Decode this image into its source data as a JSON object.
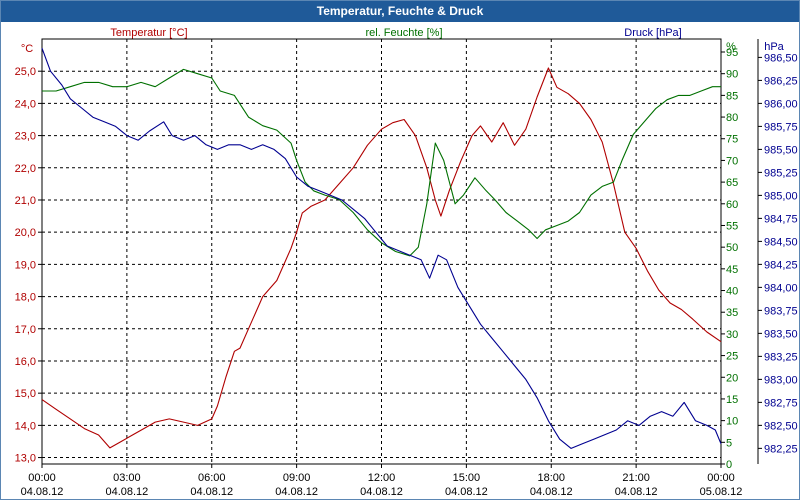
{
  "window": {
    "title": "Temperatur, Feuchte & Druck"
  },
  "chart_data": {
    "type": "line",
    "title": "Temperatur, Feuchte & Druck",
    "grid": true,
    "x": {
      "ticks": [
        {
          "time": "00:00",
          "date": "04.08.12"
        },
        {
          "time": "03:00",
          "date": "04.08.12"
        },
        {
          "time": "06:00",
          "date": "04.08.12"
        },
        {
          "time": "09:00",
          "date": "04.08.12"
        },
        {
          "time": "12:00",
          "date": "04.08.12"
        },
        {
          "time": "15:00",
          "date": "04.08.12"
        },
        {
          "time": "18:00",
          "date": "04.08.12"
        },
        {
          "time": "21:00",
          "date": "04.08.12"
        },
        {
          "time": "00:00",
          "date": "05.08.12"
        }
      ],
      "range_hours": [
        0,
        24
      ]
    },
    "axes": {
      "temperature": {
        "unit": "°C",
        "label": "Temperatur [°C]",
        "color": "#b00000",
        "ylim": [
          12.8,
          26.0
        ],
        "ticks": [
          13.0,
          14.0,
          15.0,
          16.0,
          17.0,
          18.0,
          19.0,
          20.0,
          21.0,
          22.0,
          23.0,
          24.0,
          25.0
        ],
        "tick_labels": [
          "13,0",
          "14,0",
          "15,0",
          "16,0",
          "17,0",
          "18,0",
          "19,0",
          "20,0",
          "21,0",
          "22,0",
          "23,0",
          "24,0",
          "25,0"
        ]
      },
      "humidity": {
        "unit": "%",
        "label": "rel. Feuchte [%]",
        "color": "#007000",
        "ylim": [
          0,
          98
        ],
        "ticks": [
          0,
          5,
          10,
          15,
          20,
          25,
          30,
          35,
          40,
          45,
          50,
          55,
          60,
          65,
          70,
          75,
          80,
          85,
          90,
          95
        ],
        "tick_labels": [
          "0",
          "5",
          "10",
          "15",
          "20",
          "25",
          "30",
          "35",
          "40",
          "45",
          "50",
          "55",
          "60",
          "65",
          "70",
          "75",
          "80",
          "85",
          "90",
          "95"
        ]
      },
      "pressure": {
        "unit": "hPa",
        "label": "Druck [hPa]",
        "color": "#000090",
        "ylim": [
          982.08,
          986.7
        ],
        "ticks": [
          982.25,
          982.5,
          982.75,
          983.0,
          983.25,
          983.5,
          983.75,
          984.0,
          984.25,
          984.5,
          984.75,
          985.0,
          985.25,
          985.5,
          985.75,
          986.0,
          986.25,
          986.5
        ],
        "tick_labels": [
          "982,25",
          "982,50",
          "982,75",
          "983,00",
          "983,25",
          "983,50",
          "983,75",
          "984,00",
          "984,25",
          "984,50",
          "984,75",
          "985,00",
          "985,25",
          "985,50",
          "985,75",
          "986,00",
          "986,25",
          "986,50"
        ]
      }
    },
    "series": [
      {
        "name": "Temperatur [°C]",
        "axis": "temperature",
        "points": [
          [
            0,
            14.8
          ],
          [
            0.5,
            14.5
          ],
          [
            1,
            14.2
          ],
          [
            1.5,
            13.9
          ],
          [
            2,
            13.7
          ],
          [
            2.4,
            13.3
          ],
          [
            2.8,
            13.5
          ],
          [
            3.2,
            13.7
          ],
          [
            3.6,
            13.9
          ],
          [
            4,
            14.1
          ],
          [
            4.5,
            14.2
          ],
          [
            5,
            14.1
          ],
          [
            5.5,
            14.0
          ],
          [
            6,
            14.2
          ],
          [
            6.2,
            14.6
          ],
          [
            6.5,
            15.5
          ],
          [
            6.8,
            16.3
          ],
          [
            7,
            16.4
          ],
          [
            7.3,
            17.0
          ],
          [
            7.8,
            18.0
          ],
          [
            8.3,
            18.5
          ],
          [
            8.8,
            19.5
          ],
          [
            9,
            20.0
          ],
          [
            9.2,
            20.6
          ],
          [
            9.5,
            20.8
          ],
          [
            10,
            21.0
          ],
          [
            10.5,
            21.5
          ],
          [
            11,
            22.0
          ],
          [
            11.5,
            22.7
          ],
          [
            12,
            23.2
          ],
          [
            12.4,
            23.4
          ],
          [
            12.8,
            23.5
          ],
          [
            13.2,
            23.0
          ],
          [
            13.6,
            22.0
          ],
          [
            13.9,
            21.0
          ],
          [
            14.1,
            20.5
          ],
          [
            14.4,
            21.3
          ],
          [
            14.8,
            22.2
          ],
          [
            15.2,
            23.0
          ],
          [
            15.5,
            23.3
          ],
          [
            15.9,
            22.8
          ],
          [
            16.3,
            23.4
          ],
          [
            16.7,
            22.7
          ],
          [
            17.1,
            23.2
          ],
          [
            17.5,
            24.2
          ],
          [
            17.9,
            25.1
          ],
          [
            18.2,
            24.5
          ],
          [
            18.6,
            24.3
          ],
          [
            19,
            24.0
          ],
          [
            19.4,
            23.5
          ],
          [
            19.8,
            22.8
          ],
          [
            20.2,
            21.5
          ],
          [
            20.6,
            20.0
          ],
          [
            21,
            19.5
          ],
          [
            21.4,
            18.8
          ],
          [
            21.8,
            18.2
          ],
          [
            22.2,
            17.8
          ],
          [
            22.6,
            17.6
          ],
          [
            23,
            17.3
          ],
          [
            23.5,
            16.9
          ],
          [
            24,
            16.6
          ]
        ]
      },
      {
        "name": "rel. Feuchte [%]",
        "axis": "humidity",
        "points": [
          [
            0,
            86
          ],
          [
            0.5,
            86
          ],
          [
            1,
            87
          ],
          [
            1.5,
            88
          ],
          [
            2,
            88
          ],
          [
            2.5,
            87
          ],
          [
            3,
            87
          ],
          [
            3.5,
            88
          ],
          [
            4,
            87
          ],
          [
            4.5,
            89
          ],
          [
            5,
            91
          ],
          [
            5.5,
            90
          ],
          [
            6,
            89
          ],
          [
            6.3,
            86
          ],
          [
            6.8,
            85
          ],
          [
            7.3,
            80
          ],
          [
            7.8,
            78
          ],
          [
            8.3,
            77
          ],
          [
            8.8,
            74
          ],
          [
            9,
            70
          ],
          [
            9.3,
            65
          ],
          [
            9.6,
            63
          ],
          [
            10,
            62
          ],
          [
            10.5,
            61
          ],
          [
            11,
            58
          ],
          [
            11.5,
            54
          ],
          [
            12,
            51
          ],
          [
            12.5,
            49
          ],
          [
            13,
            48
          ],
          [
            13.3,
            50
          ],
          [
            13.6,
            60
          ],
          [
            13.9,
            74
          ],
          [
            14.2,
            70
          ],
          [
            14.4,
            65
          ],
          [
            14.6,
            60
          ],
          [
            14.9,
            62
          ],
          [
            15.3,
            66
          ],
          [
            15.7,
            63
          ],
          [
            16,
            61
          ],
          [
            16.4,
            58
          ],
          [
            16.8,
            56
          ],
          [
            17.2,
            54
          ],
          [
            17.5,
            52
          ],
          [
            17.8,
            54
          ],
          [
            18.2,
            55
          ],
          [
            18.6,
            56
          ],
          [
            19,
            58
          ],
          [
            19.4,
            62
          ],
          [
            19.8,
            64
          ],
          [
            20.2,
            65
          ],
          [
            20.5,
            70
          ],
          [
            20.9,
            76
          ],
          [
            21.3,
            79
          ],
          [
            21.7,
            82
          ],
          [
            22.1,
            84
          ],
          [
            22.5,
            85
          ],
          [
            22.9,
            85
          ],
          [
            23.3,
            86
          ],
          [
            23.7,
            87
          ],
          [
            24,
            87
          ]
        ]
      },
      {
        "name": "Druck [hPa]",
        "axis": "pressure",
        "points": [
          [
            0,
            986.6
          ],
          [
            0.3,
            986.35
          ],
          [
            0.7,
            986.2
          ],
          [
            1,
            986.05
          ],
          [
            1.4,
            985.95
          ],
          [
            1.8,
            985.85
          ],
          [
            2.2,
            985.8
          ],
          [
            2.6,
            985.75
          ],
          [
            3,
            985.65
          ],
          [
            3.4,
            985.6
          ],
          [
            3.8,
            985.7
          ],
          [
            4.3,
            985.8
          ],
          [
            4.6,
            985.65
          ],
          [
            5,
            985.6
          ],
          [
            5.4,
            985.65
          ],
          [
            5.8,
            985.55
          ],
          [
            6.2,
            985.5
          ],
          [
            6.6,
            985.55
          ],
          [
            7,
            985.55
          ],
          [
            7.4,
            985.5
          ],
          [
            7.8,
            985.55
          ],
          [
            8.2,
            985.5
          ],
          [
            8.6,
            985.4
          ],
          [
            9,
            985.2
          ],
          [
            9.4,
            985.1
          ],
          [
            9.8,
            985.05
          ],
          [
            10.2,
            985.0
          ],
          [
            10.6,
            984.95
          ],
          [
            11,
            984.85
          ],
          [
            11.4,
            984.75
          ],
          [
            11.8,
            984.6
          ],
          [
            12.2,
            984.45
          ],
          [
            12.6,
            984.4
          ],
          [
            13,
            984.35
          ],
          [
            13.4,
            984.3
          ],
          [
            13.7,
            984.1
          ],
          [
            14,
            984.35
          ],
          [
            14.3,
            984.3
          ],
          [
            14.7,
            984.0
          ],
          [
            15.1,
            983.8
          ],
          [
            15.5,
            983.6
          ],
          [
            15.9,
            983.45
          ],
          [
            16.3,
            983.3
          ],
          [
            16.7,
            983.15
          ],
          [
            17.1,
            983.0
          ],
          [
            17.5,
            982.8
          ],
          [
            17.9,
            982.55
          ],
          [
            18.3,
            982.35
          ],
          [
            18.7,
            982.25
          ],
          [
            19.1,
            982.3
          ],
          [
            19.5,
            982.35
          ],
          [
            19.9,
            982.4
          ],
          [
            20.3,
            982.45
          ],
          [
            20.7,
            982.55
          ],
          [
            21.1,
            982.5
          ],
          [
            21.5,
            982.6
          ],
          [
            21.9,
            982.65
          ],
          [
            22.3,
            982.6
          ],
          [
            22.7,
            982.75
          ],
          [
            23.1,
            982.55
          ],
          [
            23.5,
            982.5
          ],
          [
            23.8,
            982.45
          ],
          [
            24,
            982.3
          ]
        ]
      }
    ]
  }
}
